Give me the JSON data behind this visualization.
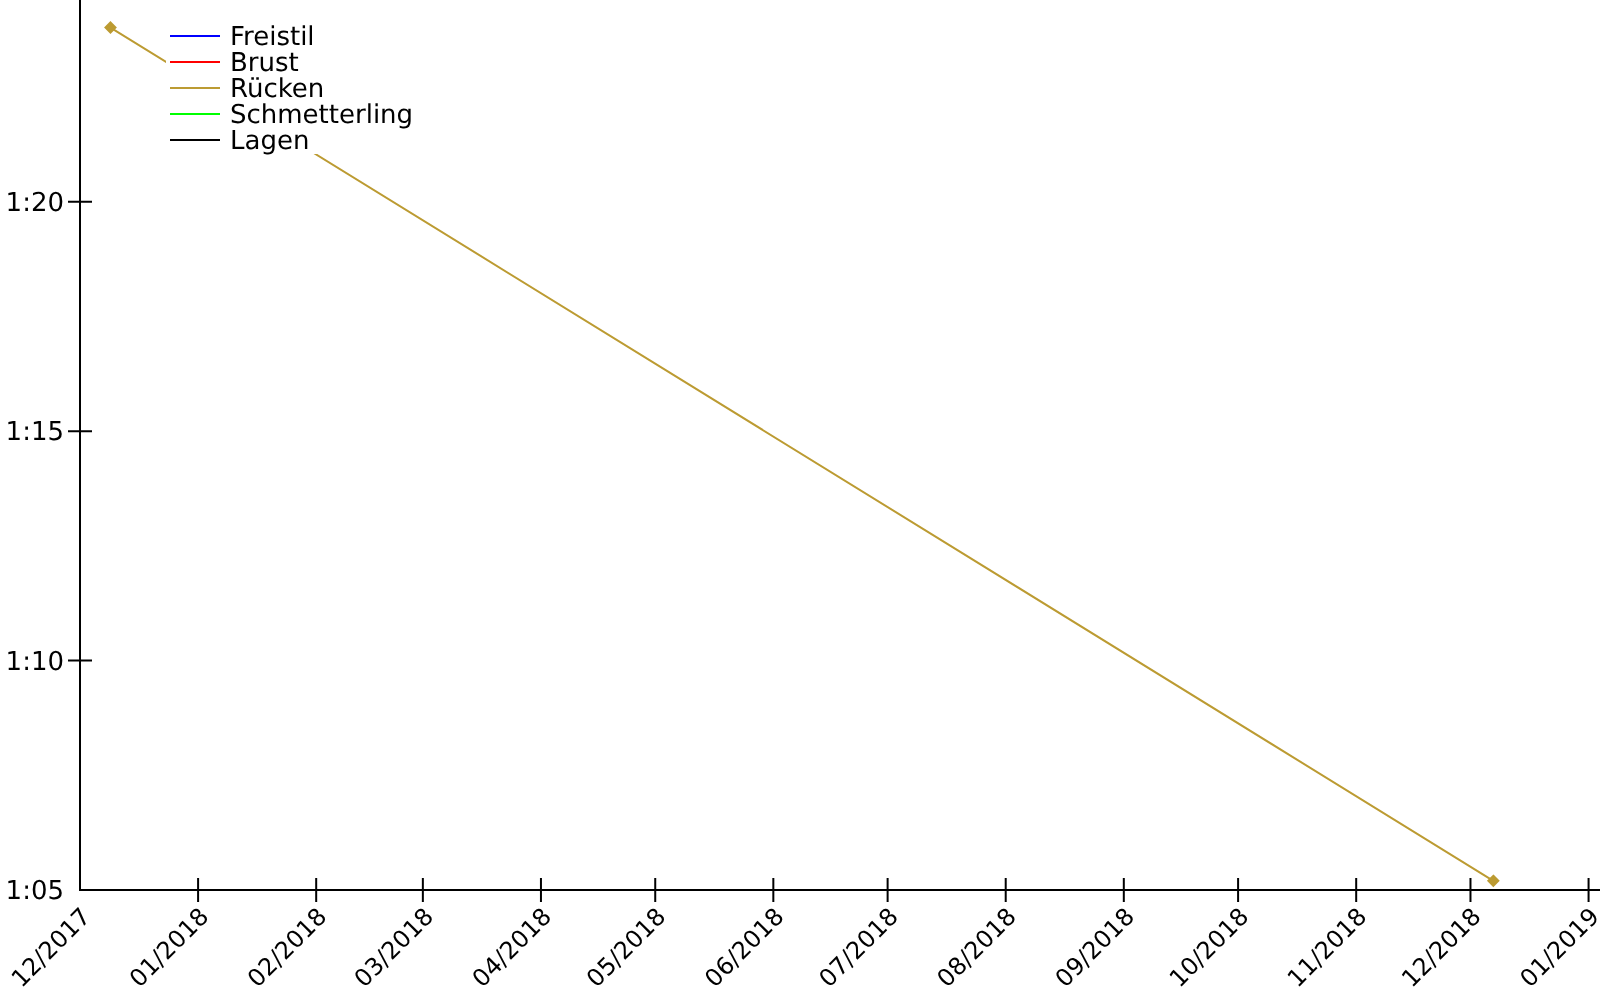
{
  "chart_data": {
    "type": "line",
    "xlim": [
      "2017-12-01",
      "2019-01-04"
    ],
    "xticks": [
      {
        "value": "2017-12-01",
        "label": "12/2017"
      },
      {
        "value": "2018-01-01",
        "label": "01/2018"
      },
      {
        "value": "2018-02-01",
        "label": "02/2018"
      },
      {
        "value": "2018-03-01",
        "label": "03/2018"
      },
      {
        "value": "2018-04-01",
        "label": "04/2018"
      },
      {
        "value": "2018-05-01",
        "label": "05/2018"
      },
      {
        "value": "2018-06-01",
        "label": "06/2018"
      },
      {
        "value": "2018-07-01",
        "label": "07/2018"
      },
      {
        "value": "2018-08-01",
        "label": "08/2018"
      },
      {
        "value": "2018-09-01",
        "label": "09/2018"
      },
      {
        "value": "2018-10-01",
        "label": "10/2018"
      },
      {
        "value": "2018-11-01",
        "label": "11/2018"
      },
      {
        "value": "2018-12-01",
        "label": "12/2018"
      },
      {
        "value": "2019-01-01",
        "label": "01/2019"
      }
    ],
    "ylim": [
      65,
      84.4
    ],
    "yticks": [
      {
        "value": 65,
        "label": "1:05"
      },
      {
        "value": 70,
        "label": "1:10"
      },
      {
        "value": 75,
        "label": "1:15"
      },
      {
        "value": 80,
        "label": "1:20"
      }
    ],
    "grid": false,
    "legend": "top left",
    "marker": "diamond",
    "line_style": "solid",
    "series": [
      {
        "name": "Freistil",
        "color": "#0000ff"
      },
      {
        "name": "Brust",
        "color": "#ff0000"
      },
      {
        "name": "Rücken",
        "color": "#bc9b32",
        "x": [
          "2017-12-09",
          "2018-12-07"
        ],
        "values": [
          83.8,
          65.2
        ]
      },
      {
        "name": "Schmetterling",
        "color": "#00ff00"
      },
      {
        "name": "Lagen",
        "color": "#000000"
      }
    ]
  }
}
